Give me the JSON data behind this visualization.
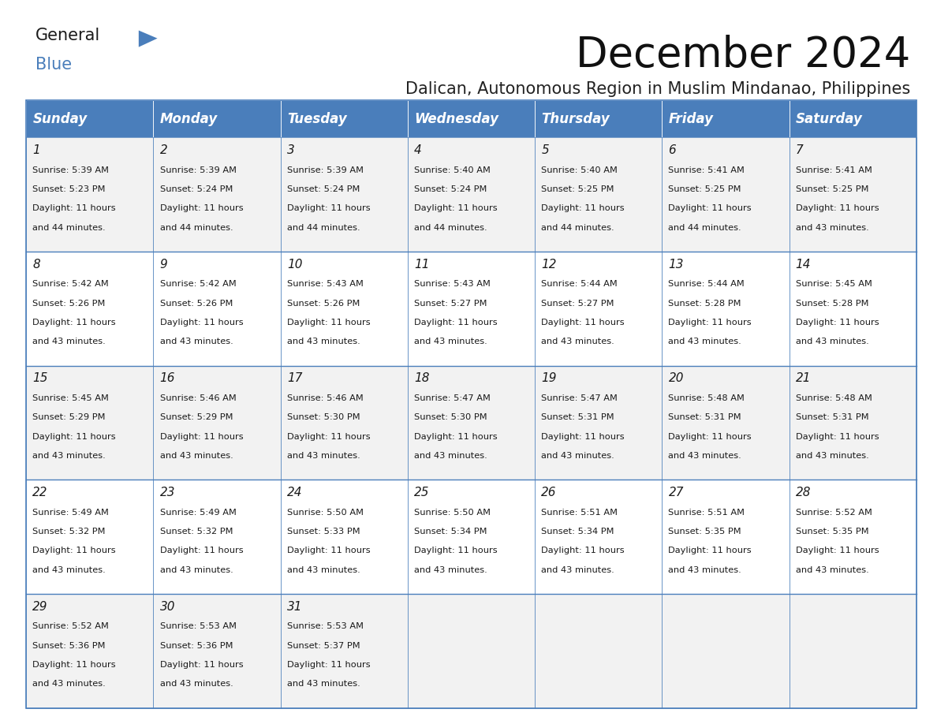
{
  "title": "December 2024",
  "subtitle": "Dalican, Autonomous Region in Muslim Mindanao, Philippines",
  "days_of_week": [
    "Sunday",
    "Monday",
    "Tuesday",
    "Wednesday",
    "Thursday",
    "Friday",
    "Saturday"
  ],
  "header_bg": "#4A7EBB",
  "header_text": "#FFFFFF",
  "row_bg_odd": "#F2F2F2",
  "row_bg_even": "#FFFFFF",
  "border_color": "#4A7EBB",
  "cell_data": [
    [
      {
        "day": 1,
        "sunrise": "5:39 AM",
        "sunset": "5:23 PM",
        "daylight": "11 hours and 44 minutes."
      },
      {
        "day": 2,
        "sunrise": "5:39 AM",
        "sunset": "5:24 PM",
        "daylight": "11 hours and 44 minutes."
      },
      {
        "day": 3,
        "sunrise": "5:39 AM",
        "sunset": "5:24 PM",
        "daylight": "11 hours and 44 minutes."
      },
      {
        "day": 4,
        "sunrise": "5:40 AM",
        "sunset": "5:24 PM",
        "daylight": "11 hours and 44 minutes."
      },
      {
        "day": 5,
        "sunrise": "5:40 AM",
        "sunset": "5:25 PM",
        "daylight": "11 hours and 44 minutes."
      },
      {
        "day": 6,
        "sunrise": "5:41 AM",
        "sunset": "5:25 PM",
        "daylight": "11 hours and 44 minutes."
      },
      {
        "day": 7,
        "sunrise": "5:41 AM",
        "sunset": "5:25 PM",
        "daylight": "11 hours and 43 minutes."
      }
    ],
    [
      {
        "day": 8,
        "sunrise": "5:42 AM",
        "sunset": "5:26 PM",
        "daylight": "11 hours and 43 minutes."
      },
      {
        "day": 9,
        "sunrise": "5:42 AM",
        "sunset": "5:26 PM",
        "daylight": "11 hours and 43 minutes."
      },
      {
        "day": 10,
        "sunrise": "5:43 AM",
        "sunset": "5:26 PM",
        "daylight": "11 hours and 43 minutes."
      },
      {
        "day": 11,
        "sunrise": "5:43 AM",
        "sunset": "5:27 PM",
        "daylight": "11 hours and 43 minutes."
      },
      {
        "day": 12,
        "sunrise": "5:44 AM",
        "sunset": "5:27 PM",
        "daylight": "11 hours and 43 minutes."
      },
      {
        "day": 13,
        "sunrise": "5:44 AM",
        "sunset": "5:28 PM",
        "daylight": "11 hours and 43 minutes."
      },
      {
        "day": 14,
        "sunrise": "5:45 AM",
        "sunset": "5:28 PM",
        "daylight": "11 hours and 43 minutes."
      }
    ],
    [
      {
        "day": 15,
        "sunrise": "5:45 AM",
        "sunset": "5:29 PM",
        "daylight": "11 hours and 43 minutes."
      },
      {
        "day": 16,
        "sunrise": "5:46 AM",
        "sunset": "5:29 PM",
        "daylight": "11 hours and 43 minutes."
      },
      {
        "day": 17,
        "sunrise": "5:46 AM",
        "sunset": "5:30 PM",
        "daylight": "11 hours and 43 minutes."
      },
      {
        "day": 18,
        "sunrise": "5:47 AM",
        "sunset": "5:30 PM",
        "daylight": "11 hours and 43 minutes."
      },
      {
        "day": 19,
        "sunrise": "5:47 AM",
        "sunset": "5:31 PM",
        "daylight": "11 hours and 43 minutes."
      },
      {
        "day": 20,
        "sunrise": "5:48 AM",
        "sunset": "5:31 PM",
        "daylight": "11 hours and 43 minutes."
      },
      {
        "day": 21,
        "sunrise": "5:48 AM",
        "sunset": "5:31 PM",
        "daylight": "11 hours and 43 minutes."
      }
    ],
    [
      {
        "day": 22,
        "sunrise": "5:49 AM",
        "sunset": "5:32 PM",
        "daylight": "11 hours and 43 minutes."
      },
      {
        "day": 23,
        "sunrise": "5:49 AM",
        "sunset": "5:32 PM",
        "daylight": "11 hours and 43 minutes."
      },
      {
        "day": 24,
        "sunrise": "5:50 AM",
        "sunset": "5:33 PM",
        "daylight": "11 hours and 43 minutes."
      },
      {
        "day": 25,
        "sunrise": "5:50 AM",
        "sunset": "5:34 PM",
        "daylight": "11 hours and 43 minutes."
      },
      {
        "day": 26,
        "sunrise": "5:51 AM",
        "sunset": "5:34 PM",
        "daylight": "11 hours and 43 minutes."
      },
      {
        "day": 27,
        "sunrise": "5:51 AM",
        "sunset": "5:35 PM",
        "daylight": "11 hours and 43 minutes."
      },
      {
        "day": 28,
        "sunrise": "5:52 AM",
        "sunset": "5:35 PM",
        "daylight": "11 hours and 43 minutes."
      }
    ],
    [
      {
        "day": 29,
        "sunrise": "5:52 AM",
        "sunset": "5:36 PM",
        "daylight": "11 hours and 43 minutes."
      },
      {
        "day": 30,
        "sunrise": "5:53 AM",
        "sunset": "5:36 PM",
        "daylight": "11 hours and 43 minutes."
      },
      {
        "day": 31,
        "sunrise": "5:53 AM",
        "sunset": "5:37 PM",
        "daylight": "11 hours and 43 minutes."
      },
      null,
      null,
      null,
      null
    ]
  ],
  "logo_color_general": "#1a1a1a",
  "logo_color_blue": "#4A7EBB",
  "logo_color_triangle": "#4A7EBB",
  "title_fontsize": 38,
  "subtitle_fontsize": 15,
  "header_fontsize": 12,
  "day_num_fontsize": 11,
  "cell_text_fontsize": 8.2
}
